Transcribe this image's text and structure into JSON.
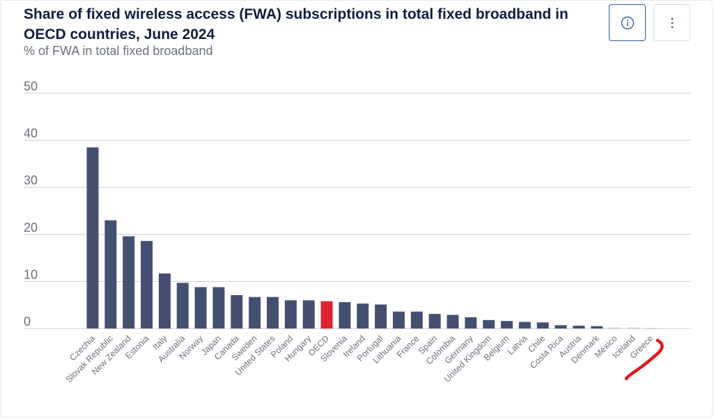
{
  "header": {
    "title": "Share of fixed wireless access (FWA) subscriptions in total fixed broadband in OECD countries, June 2024",
    "subtitle": "% of FWA in total fixed broadband"
  },
  "toolbar": {
    "info_icon": "info-circle-icon",
    "more_icon": "vertical-ellipsis-icon"
  },
  "colors": {
    "bar": "#454f72",
    "highlight": "#e0212f",
    "tiny_bar": "#c6cad6",
    "grid": "#c9ccd6",
    "annotation": "#e0191b"
  },
  "chart_data": {
    "type": "bar",
    "title": "Share of fixed wireless access (FWA) subscriptions in total fixed broadband in OECD countries, June 2024",
    "ylabel": "% of FWA in total fixed broadband",
    "ylim": [
      0,
      50
    ],
    "yticks": [
      "0",
      "10",
      "20",
      "30",
      "40",
      "50"
    ],
    "grid": true,
    "highlight_category": "OECD",
    "categories": [
      "Czechia",
      "Slovak Republic",
      "New Zealand",
      "Estonia",
      "Italy",
      "Australia",
      "Norway",
      "Japan",
      "Canada",
      "Sweden",
      "United States",
      "Poland",
      "Hungary",
      "OECD",
      "Slovenia",
      "Ireland",
      "Portugal",
      "Lithuania",
      "France",
      "Spain",
      "Colombia",
      "Germany",
      "United Kingdom",
      "Belgium",
      "Latvia",
      "Chile",
      "Costa Rica",
      "Austria",
      "Denmark",
      "Mexico",
      "Iceland",
      "Greece"
    ],
    "values": [
      38.5,
      23.0,
      19.6,
      18.6,
      11.7,
      9.7,
      8.8,
      8.8,
      7.1,
      6.7,
      6.7,
      6.0,
      6.0,
      5.8,
      5.6,
      5.3,
      5.1,
      3.6,
      3.6,
      3.1,
      2.9,
      2.4,
      1.8,
      1.6,
      1.4,
      1.3,
      0.7,
      0.6,
      0.5,
      0.2,
      0.2,
      0.1
    ]
  }
}
